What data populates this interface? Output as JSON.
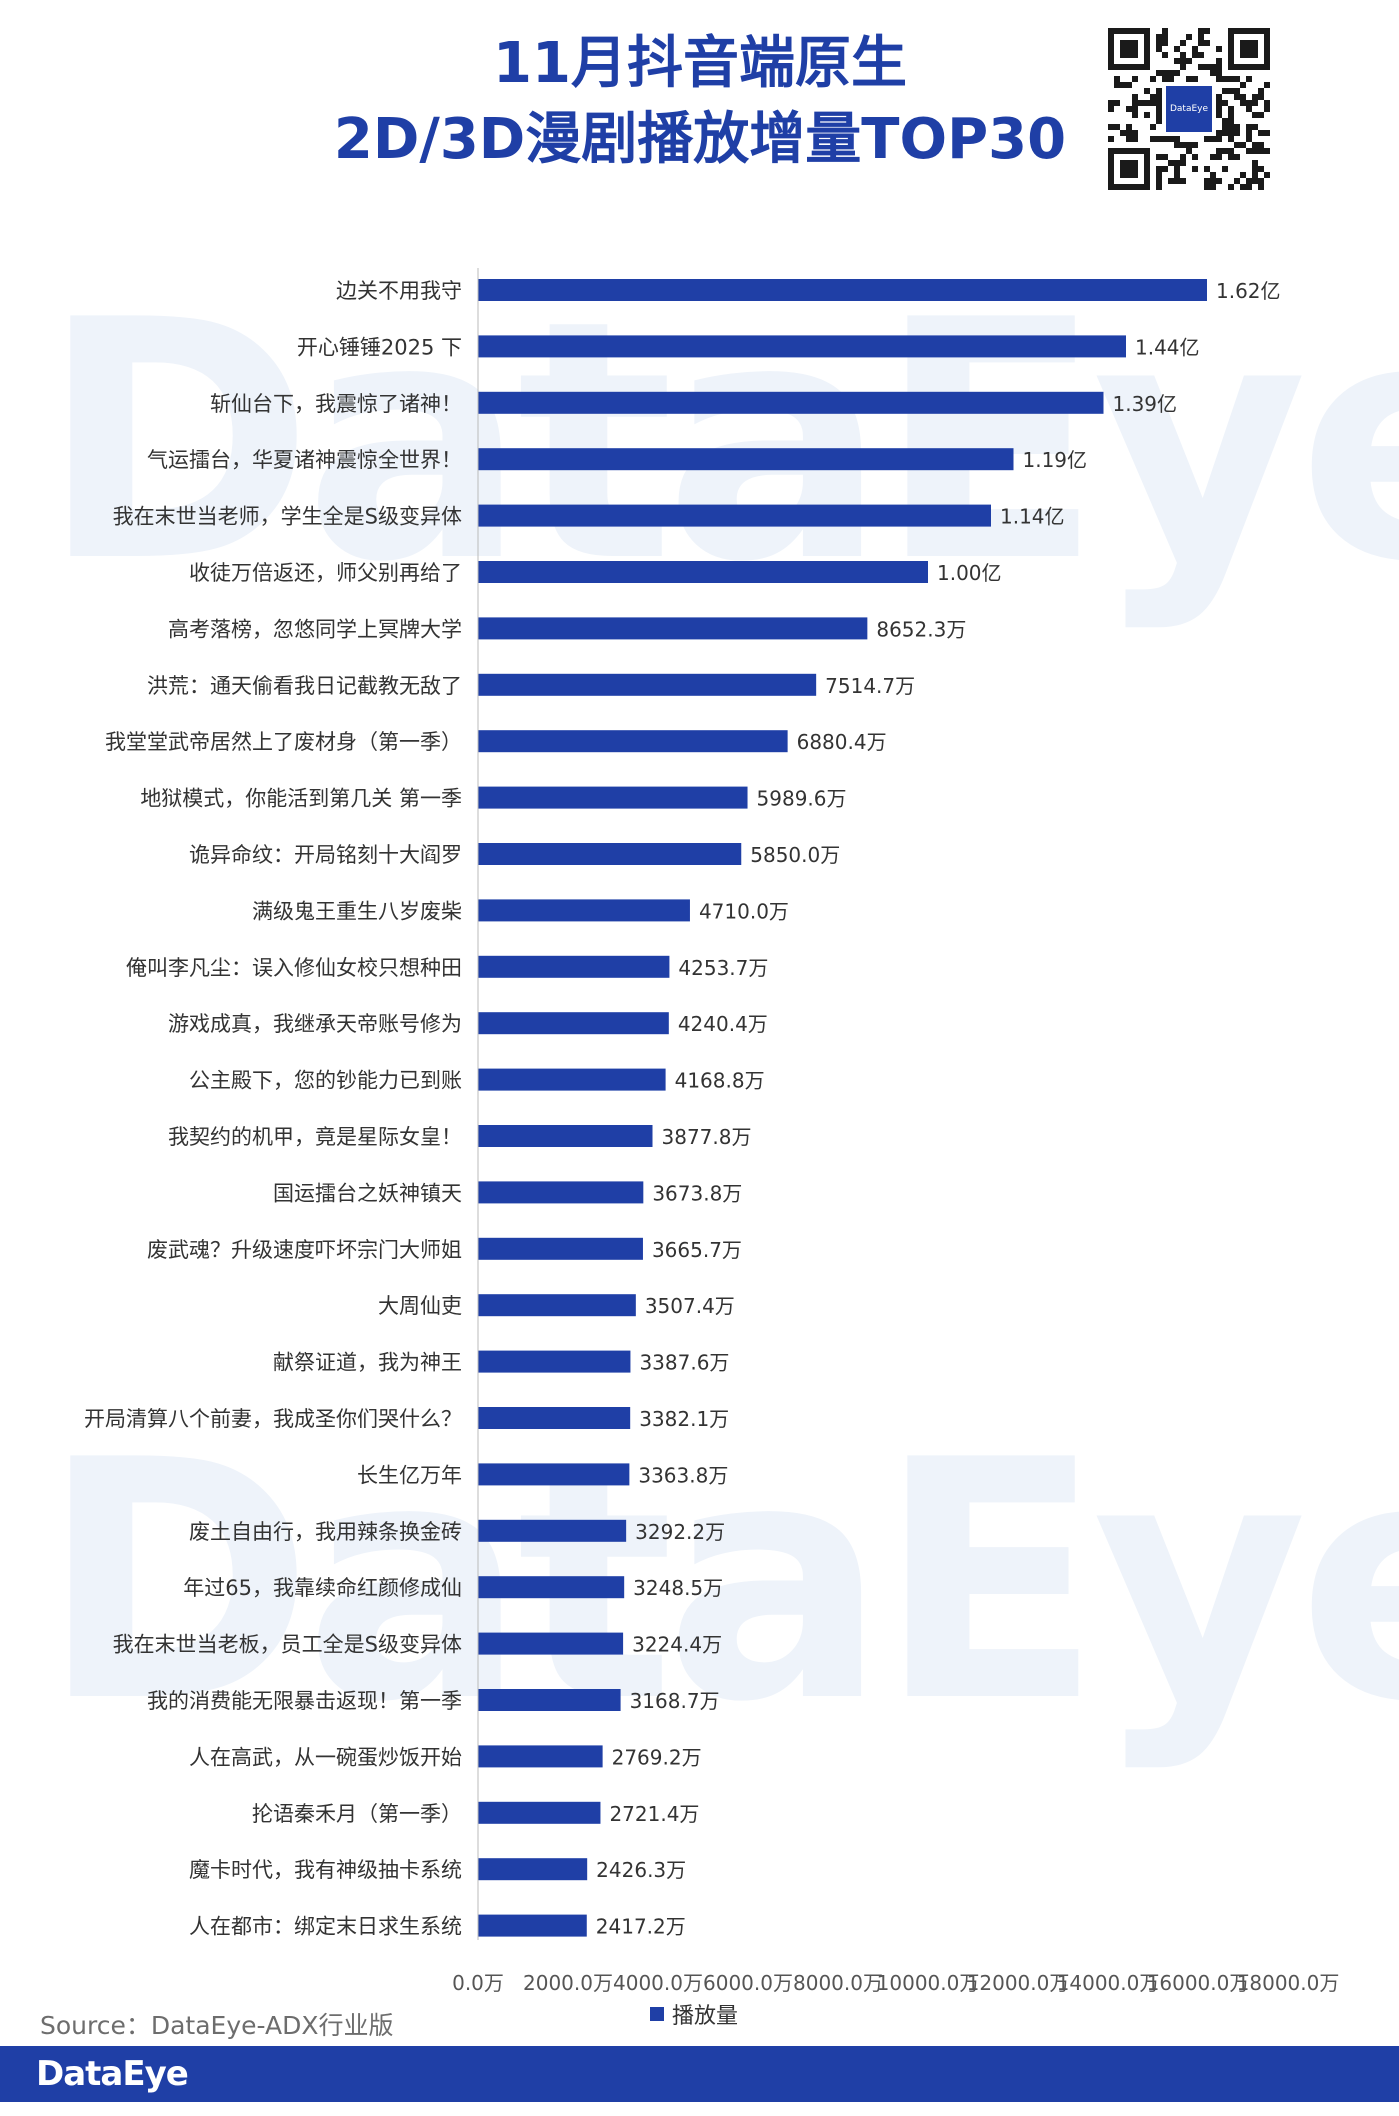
{
  "header": {
    "title_line1": "11月抖音端原生",
    "title_line2": "2D/3D漫剧播放增量TOP30",
    "qr_center_text": "DataEye"
  },
  "watermark": "DataEye",
  "source": "Source：DataEye-ADX行业版",
  "footer": {
    "logo": "DataEye"
  },
  "colors": {
    "bar": "#1f3fa6",
    "accent": "#1f3fa6"
  },
  "chart_data": {
    "type": "bar",
    "orientation": "horizontal",
    "categories": [
      "边关不用我守",
      "开心锤锤2025 下",
      "斩仙台下，我震惊了诸神！",
      "气运擂台，华夏诸神震惊全世界！",
      "我在末世当老师，学生全是S级变异体",
      "收徒万倍返还，师父别再给了",
      "高考落榜，忽悠同学上冥牌大学",
      "洪荒：通天偷看我日记截教无敌了",
      "我堂堂武帝居然上了废材身（第一季）",
      "地狱模式，你能活到第几关 第一季",
      "诡异命纹：开局铭刻十大阎罗",
      "满级鬼王重生八岁废柴",
      "俺叫李凡尘：误入修仙女校只想种田",
      "游戏成真，我继承天帝账号修为",
      "公主殿下，您的钞能力已到账",
      "我契约的机甲，竟是星际女皇！",
      "国运擂台之妖神镇天",
      "废武魂？升级速度吓坏宗门大师姐",
      "大周仙吏",
      "献祭证道，我为神王",
      "开局清算八个前妻，我成圣你们哭什么？",
      "长生亿万年",
      "废土自由行，我用辣条换金砖",
      "年过65，我靠续命红颜修成仙",
      "我在末世当老板，员工全是S级变异体",
      "我的消费能无限暴击返现！第一季",
      "人在高武，从一碗蛋炒饭开始",
      "抡语秦禾月（第一季）",
      "魔卡时代，我有神级抽卡系统",
      "人在都市：绑定末日求生系统"
    ],
    "series": [
      {
        "name": "播放量",
        "values": [
          16200,
          14400,
          13900,
          11900,
          11400,
          10000,
          8652.3,
          7514.7,
          6880.4,
          5989.6,
          5850.0,
          4710.0,
          4253.7,
          4240.4,
          4168.8,
          3877.8,
          3673.8,
          3665.7,
          3507.4,
          3387.6,
          3382.1,
          3363.8,
          3292.2,
          3248.5,
          3224.4,
          3168.7,
          2769.2,
          2721.4,
          2426.3,
          2417.2
        ],
        "labels": [
          "1.62亿",
          "1.44亿",
          "1.39亿",
          "1.19亿",
          "1.14亿",
          "1.00亿",
          "8652.3万",
          "7514.7万",
          "6880.4万",
          "5989.6万",
          "5850.0万",
          "4710.0万",
          "4253.7万",
          "4240.4万",
          "4168.8万",
          "3877.8万",
          "3673.8万",
          "3665.7万",
          "3507.4万",
          "3387.6万",
          "3382.1万",
          "3363.8万",
          "3292.2万",
          "3248.5万",
          "3224.4万",
          "3168.7万",
          "2769.2万",
          "2721.4万",
          "2426.3万",
          "2417.2万"
        ]
      }
    ],
    "x_unit": "万",
    "xlim": [
      0,
      18000
    ],
    "x_ticks": [
      0,
      2000,
      4000,
      6000,
      8000,
      10000,
      12000,
      14000,
      16000,
      18000
    ],
    "x_tick_labels": [
      "0.0万",
      "2000.0万",
      "4000.0万",
      "6000.0万",
      "8000.0万",
      "10000.0万",
      "12000.0万",
      "14000.0万",
      "16000.0万",
      "18000.0万"
    ],
    "legend": {
      "position": "bottom",
      "label": "播放量"
    },
    "grid": false
  }
}
